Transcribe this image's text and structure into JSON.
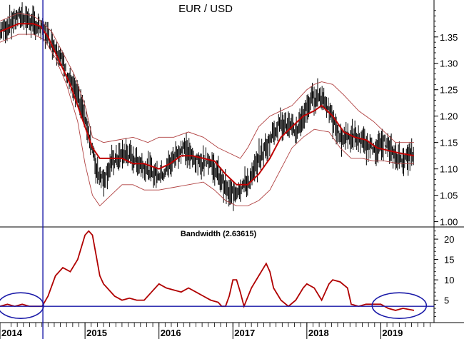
{
  "chart_data": [
    {
      "type": "line",
      "title": "EUR / USD",
      "ylim": [
        0.99,
        1.42
      ],
      "yticks": [
        "1.00",
        "1.05",
        "1.10",
        "1.15",
        "1.20",
        "1.25",
        "1.30",
        "1.35"
      ],
      "x_start": 2013.85,
      "x_end": 2019.72,
      "series_price": {
        "x": [
          2013.85,
          2013.95,
          2014.05,
          2014.15,
          2014.25,
          2014.35,
          2014.45,
          2014.55,
          2014.65,
          2014.75,
          2014.85,
          2014.95,
          2015.05,
          2015.15,
          2015.25,
          2015.35,
          2015.45,
          2015.55,
          2015.65,
          2015.75,
          2015.85,
          2015.95,
          2016.05,
          2016.15,
          2016.25,
          2016.35,
          2016.45,
          2016.55,
          2016.65,
          2016.75,
          2016.85,
          2016.95,
          2017.05,
          2017.15,
          2017.25,
          2017.35,
          2017.45,
          2017.55,
          2017.65,
          2017.75,
          2017.85,
          2017.95,
          2018.05,
          2018.15,
          2018.25,
          2018.35,
          2018.45,
          2018.55,
          2018.65,
          2018.75,
          2018.85,
          2018.95,
          2019.05,
          2019.15,
          2019.25,
          2019.35,
          2019.45
        ],
        "y": [
          1.36,
          1.37,
          1.385,
          1.39,
          1.38,
          1.37,
          1.36,
          1.34,
          1.32,
          1.28,
          1.25,
          1.22,
          1.17,
          1.1,
          1.08,
          1.11,
          1.12,
          1.13,
          1.12,
          1.11,
          1.1,
          1.09,
          1.09,
          1.11,
          1.13,
          1.14,
          1.12,
          1.11,
          1.12,
          1.1,
          1.08,
          1.05,
          1.06,
          1.07,
          1.08,
          1.12,
          1.14,
          1.17,
          1.19,
          1.18,
          1.17,
          1.2,
          1.23,
          1.24,
          1.23,
          1.19,
          1.16,
          1.16,
          1.16,
          1.15,
          1.14,
          1.14,
          1.15,
          1.13,
          1.12,
          1.12,
          1.13
        ]
      },
      "series_ma": {
        "x": [
          2013.85,
          2014.1,
          2014.3,
          2014.4,
          2014.5,
          2014.6,
          2014.7,
          2014.8,
          2014.9,
          2015.0,
          2015.1,
          2015.2,
          2015.35,
          2015.5,
          2015.65,
          2015.8,
          2016.0,
          2016.15,
          2016.3,
          2016.45,
          2016.6,
          2016.75,
          2016.9,
          2017.05,
          2017.2,
          2017.35,
          2017.5,
          2017.65,
          2017.8,
          2017.95,
          2018.1,
          2018.2,
          2018.35,
          2018.5,
          2018.65,
          2018.8,
          2018.95,
          2019.1,
          2019.25,
          2019.45
        ],
        "y": [
          1.36,
          1.375,
          1.375,
          1.37,
          1.35,
          1.32,
          1.29,
          1.26,
          1.22,
          1.18,
          1.14,
          1.12,
          1.12,
          1.12,
          1.11,
          1.11,
          1.1,
          1.11,
          1.125,
          1.125,
          1.12,
          1.115,
          1.09,
          1.07,
          1.07,
          1.09,
          1.12,
          1.16,
          1.18,
          1.2,
          1.21,
          1.22,
          1.2,
          1.17,
          1.16,
          1.155,
          1.14,
          1.135,
          1.13,
          1.125
        ]
      },
      "series_upper": {
        "x": [
          2013.85,
          2014.1,
          2014.3,
          2014.4,
          2014.55,
          2014.7,
          2014.85,
          2015.0,
          2015.1,
          2015.25,
          2015.45,
          2015.65,
          2015.85,
          2016.0,
          2016.2,
          2016.4,
          2016.6,
          2016.8,
          2016.95,
          2017.1,
          2017.2,
          2017.35,
          2017.5,
          2017.65,
          2017.8,
          2018.0,
          2018.1,
          2018.2,
          2018.35,
          2018.5,
          2018.7,
          2018.9,
          2019.05,
          2019.2,
          2019.45
        ],
        "y": [
          1.38,
          1.395,
          1.39,
          1.38,
          1.36,
          1.32,
          1.28,
          1.22,
          1.16,
          1.15,
          1.155,
          1.16,
          1.15,
          1.16,
          1.16,
          1.17,
          1.16,
          1.14,
          1.13,
          1.12,
          1.14,
          1.18,
          1.2,
          1.21,
          1.22,
          1.25,
          1.26,
          1.265,
          1.26,
          1.24,
          1.21,
          1.19,
          1.17,
          1.15,
          1.15
        ]
      },
      "series_lower": {
        "x": [
          2013.85,
          2014.1,
          2014.3,
          2014.45,
          2014.6,
          2014.75,
          2014.9,
          2015.0,
          2015.1,
          2015.2,
          2015.35,
          2015.5,
          2015.65,
          2015.8,
          2016.0,
          2016.2,
          2016.4,
          2016.6,
          2016.75,
          2016.9,
          2017.05,
          2017.2,
          2017.35,
          2017.5,
          2017.65,
          2017.8,
          2017.95,
          2018.1,
          2018.3,
          2018.45,
          2018.6,
          2018.75,
          2018.9,
          2019.05,
          2019.25,
          2019.45
        ],
        "y": [
          1.34,
          1.355,
          1.355,
          1.345,
          1.31,
          1.26,
          1.19,
          1.11,
          1.05,
          1.03,
          1.05,
          1.07,
          1.07,
          1.06,
          1.06,
          1.065,
          1.07,
          1.075,
          1.06,
          1.04,
          1.03,
          1.03,
          1.04,
          1.06,
          1.1,
          1.14,
          1.16,
          1.175,
          1.17,
          1.14,
          1.12,
          1.12,
          1.115,
          1.115,
          1.11,
          1.11
        ]
      }
    },
    {
      "type": "line",
      "title": "Bandwidth (2.63615)",
      "ylim": [
        -0.5,
        23
      ],
      "yticks": [
        "5",
        "10",
        "15",
        "20"
      ],
      "threshold": 3.5,
      "series": {
        "x": [
          2013.85,
          2013.95,
          2014.05,
          2014.15,
          2014.25,
          2014.35,
          2014.42,
          2014.5,
          2014.6,
          2014.7,
          2014.8,
          2014.9,
          2015.0,
          2015.05,
          2015.1,
          2015.15,
          2015.2,
          2015.25,
          2015.3,
          2015.4,
          2015.5,
          2015.6,
          2015.7,
          2015.8,
          2015.9,
          2016.0,
          2016.1,
          2016.2,
          2016.3,
          2016.4,
          2016.5,
          2016.6,
          2016.7,
          2016.8,
          2016.85,
          2016.9,
          2016.95,
          2017.0,
          2017.05,
          2017.1,
          2017.15,
          2017.25,
          2017.35,
          2017.45,
          2017.5,
          2017.55,
          2017.65,
          2017.75,
          2017.85,
          2017.95,
          2018.0,
          2018.1,
          2018.2,
          2018.3,
          2018.35,
          2018.45,
          2018.55,
          2018.6,
          2018.7,
          2018.8,
          2018.9,
          2019.0,
          2019.1,
          2019.2,
          2019.3,
          2019.45
        ],
        "y": [
          3.5,
          4,
          3.5,
          4,
          3.5,
          3.5,
          3.5,
          6,
          11,
          13,
          12,
          15,
          21,
          22,
          21,
          16,
          11,
          9,
          8,
          6,
          5,
          5.5,
          5,
          5,
          7,
          9,
          8,
          7.5,
          7,
          8,
          7,
          6,
          5,
          4.5,
          3.5,
          3.5,
          6,
          10,
          10,
          7,
          3.5,
          8,
          11,
          14,
          12,
          8,
          5,
          3.5,
          5,
          8,
          9,
          8,
          5,
          9,
          10,
          9.5,
          8,
          4,
          3.5,
          4,
          4,
          4,
          3,
          2.5,
          3,
          2.5
        ]
      }
    }
  ],
  "x_axis": {
    "labels": [
      "2014",
      "2015",
      "2016",
      "2017",
      "2018",
      "2019"
    ],
    "label_years": [
      2013.85,
      2015.0,
      2016.0,
      2017.0,
      2018.0,
      2019.0
    ]
  },
  "cursor_year": 2014.43,
  "colors": {
    "price": "#000000",
    "ma": "#c00000",
    "band": "#b04040",
    "bandwidth": "#b00000",
    "annot": "#1a1aa8",
    "axis": "#000000"
  }
}
